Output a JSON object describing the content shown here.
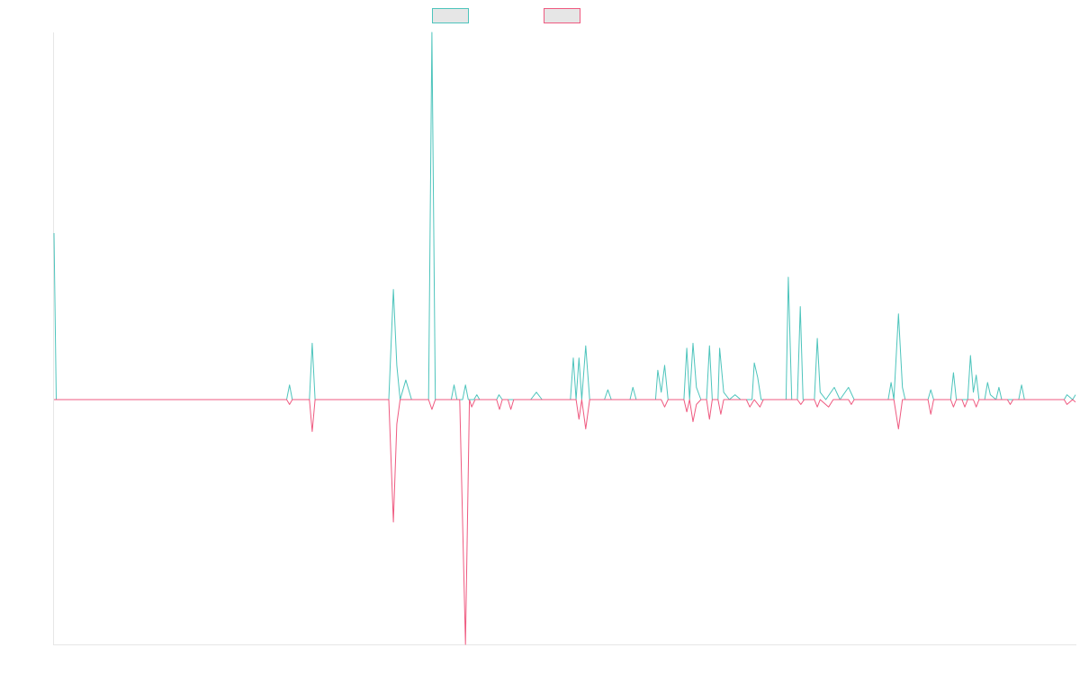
{
  "chart_data": {
    "type": "line",
    "title": "",
    "xlabel": "",
    "ylabel": "",
    "grid": false,
    "legend_placement": "top-center",
    "x_range": [
      0,
      180
    ],
    "ylim": [
      -1.0,
      1.5
    ],
    "series": [
      {
        "color": "#4dc4bc",
        "points": [
          [
            0,
            0.68
          ],
          [
            0.4,
            0
          ],
          [
            20,
            0
          ],
          [
            41,
            0
          ],
          [
            41.5,
            0.06
          ],
          [
            42,
            0
          ],
          [
            45,
            0
          ],
          [
            45.5,
            0.23
          ],
          [
            46,
            0
          ],
          [
            59,
            0
          ],
          [
            59.8,
            0.45
          ],
          [
            60.4,
            0.14
          ],
          [
            61,
            0
          ],
          [
            62,
            0.08
          ],
          [
            63,
            0
          ],
          [
            66,
            0
          ],
          [
            66.6,
            1.5
          ],
          [
            67.2,
            0
          ],
          [
            70,
            0
          ],
          [
            70.5,
            0.06
          ],
          [
            71,
            0
          ],
          [
            72,
            0
          ],
          [
            72.5,
            0.06
          ],
          [
            73,
            0
          ],
          [
            74,
            0
          ],
          [
            74.5,
            0.02
          ],
          [
            75,
            0
          ],
          [
            78,
            0
          ],
          [
            78.4,
            0.02
          ],
          [
            79,
            0
          ],
          [
            84,
            0
          ],
          [
            85,
            0.03
          ],
          [
            86,
            0
          ],
          [
            91,
            0
          ],
          [
            91.5,
            0.17
          ],
          [
            92,
            0
          ],
          [
            92.5,
            0.17
          ],
          [
            93,
            0
          ],
          [
            93.7,
            0.22
          ],
          [
            94.4,
            0
          ],
          [
            97,
            0
          ],
          [
            97.6,
            0.04
          ],
          [
            98.2,
            0
          ],
          [
            101.5,
            0
          ],
          [
            102,
            0.05
          ],
          [
            102.6,
            0
          ],
          [
            106,
            0
          ],
          [
            106.4,
            0.12
          ],
          [
            107,
            0.03
          ],
          [
            107.6,
            0.14
          ],
          [
            108.2,
            0
          ],
          [
            111,
            0
          ],
          [
            111.5,
            0.21
          ],
          [
            112,
            0
          ],
          [
            112.6,
            0.23
          ],
          [
            113.2,
            0.05
          ],
          [
            114,
            0
          ],
          [
            115,
            0
          ],
          [
            115.5,
            0.22
          ],
          [
            116,
            0
          ],
          [
            117,
            0
          ],
          [
            117.3,
            0.21
          ],
          [
            118,
            0.03
          ],
          [
            119,
            0
          ],
          [
            120,
            0.02
          ],
          [
            121,
            0
          ],
          [
            123,
            0
          ],
          [
            123.4,
            0.15
          ],
          [
            124,
            0.09
          ],
          [
            124.6,
            0
          ],
          [
            129,
            0
          ],
          [
            129.4,
            0.5
          ],
          [
            130,
            0
          ],
          [
            131,
            0
          ],
          [
            131.5,
            0.38
          ],
          [
            132,
            0
          ],
          [
            134,
            0
          ],
          [
            134.5,
            0.25
          ],
          [
            135,
            0.03
          ],
          [
            136,
            0
          ],
          [
            137.5,
            0.05
          ],
          [
            138.5,
            0
          ],
          [
            140,
            0.05
          ],
          [
            141,
            0
          ],
          [
            147,
            0
          ],
          [
            147.5,
            0.07
          ],
          [
            148,
            0
          ],
          [
            148.8,
            0.35
          ],
          [
            149.5,
            0.05
          ],
          [
            150,
            0
          ],
          [
            154,
            0
          ],
          [
            154.5,
            0.04
          ],
          [
            155,
            0
          ],
          [
            158,
            0
          ],
          [
            158.5,
            0.11
          ],
          [
            159,
            0
          ],
          [
            161,
            0
          ],
          [
            161.5,
            0.18
          ],
          [
            162,
            0.03
          ],
          [
            162.5,
            0.1
          ],
          [
            163,
            0
          ],
          [
            164,
            0
          ],
          [
            164.5,
            0.07
          ],
          [
            165,
            0.02
          ],
          [
            166,
            0
          ],
          [
            166.5,
            0.05
          ],
          [
            167,
            0
          ],
          [
            170,
            0
          ],
          [
            170.5,
            0.06
          ],
          [
            171,
            0
          ],
          [
            178,
            0
          ],
          [
            178.5,
            0.02
          ],
          [
            179.5,
            0
          ],
          [
            180,
            0.02
          ]
        ]
      },
      {
        "color": "#ef5a80",
        "points": [
          [
            0,
            0
          ],
          [
            41,
            0
          ],
          [
            41.5,
            -0.02
          ],
          [
            42,
            0
          ],
          [
            45,
            0
          ],
          [
            45.5,
            -0.13
          ],
          [
            46,
            0
          ],
          [
            59,
            0
          ],
          [
            59.8,
            -0.5
          ],
          [
            60.4,
            -0.1
          ],
          [
            61,
            0
          ],
          [
            66,
            0
          ],
          [
            66.6,
            -0.04
          ],
          [
            67.2,
            0
          ],
          [
            71.5,
            0
          ],
          [
            72.5,
            -1.0
          ],
          [
            73.2,
            0
          ],
          [
            73.6,
            -0.03
          ],
          [
            74.2,
            0
          ],
          [
            78,
            0
          ],
          [
            78.5,
            -0.04
          ],
          [
            79,
            0
          ],
          [
            80,
            0
          ],
          [
            80.5,
            -0.04
          ],
          [
            81,
            0
          ],
          [
            92,
            0
          ],
          [
            92.5,
            -0.08
          ],
          [
            93,
            0
          ],
          [
            93.7,
            -0.12
          ],
          [
            94.4,
            0
          ],
          [
            107,
            0
          ],
          [
            107.6,
            -0.03
          ],
          [
            108.2,
            0
          ],
          [
            111,
            0
          ],
          [
            111.5,
            -0.05
          ],
          [
            112,
            0
          ],
          [
            112.6,
            -0.09
          ],
          [
            113.2,
            -0.02
          ],
          [
            114,
            0
          ],
          [
            115,
            0
          ],
          [
            115.5,
            -0.08
          ],
          [
            116,
            0
          ],
          [
            117,
            0
          ],
          [
            117.5,
            -0.06
          ],
          [
            118,
            0
          ],
          [
            122,
            0
          ],
          [
            122.6,
            -0.03
          ],
          [
            123.4,
            0
          ],
          [
            124.4,
            -0.03
          ],
          [
            125,
            0
          ],
          [
            131,
            0
          ],
          [
            131.6,
            -0.02
          ],
          [
            132.2,
            0
          ],
          [
            134,
            0
          ],
          [
            134.5,
            -0.03
          ],
          [
            135,
            0
          ],
          [
            136.5,
            -0.03
          ],
          [
            137.3,
            0
          ],
          [
            140,
            0
          ],
          [
            140.5,
            -0.02
          ],
          [
            141,
            0
          ],
          [
            148,
            0
          ],
          [
            148.8,
            -0.12
          ],
          [
            149.5,
            0
          ],
          [
            154,
            0
          ],
          [
            154.5,
            -0.06
          ],
          [
            155,
            0
          ],
          [
            158,
            0
          ],
          [
            158.5,
            -0.03
          ],
          [
            159,
            0
          ],
          [
            160,
            0
          ],
          [
            160.5,
            -0.03
          ],
          [
            161,
            0
          ],
          [
            162,
            0
          ],
          [
            162.5,
            -0.03
          ],
          [
            163,
            0
          ],
          [
            168,
            0
          ],
          [
            168.5,
            -0.02
          ],
          [
            169,
            0
          ],
          [
            178,
            0
          ],
          [
            178.5,
            -0.02
          ],
          [
            179.5,
            0
          ],
          [
            180,
            -0.01
          ]
        ]
      }
    ]
  }
}
